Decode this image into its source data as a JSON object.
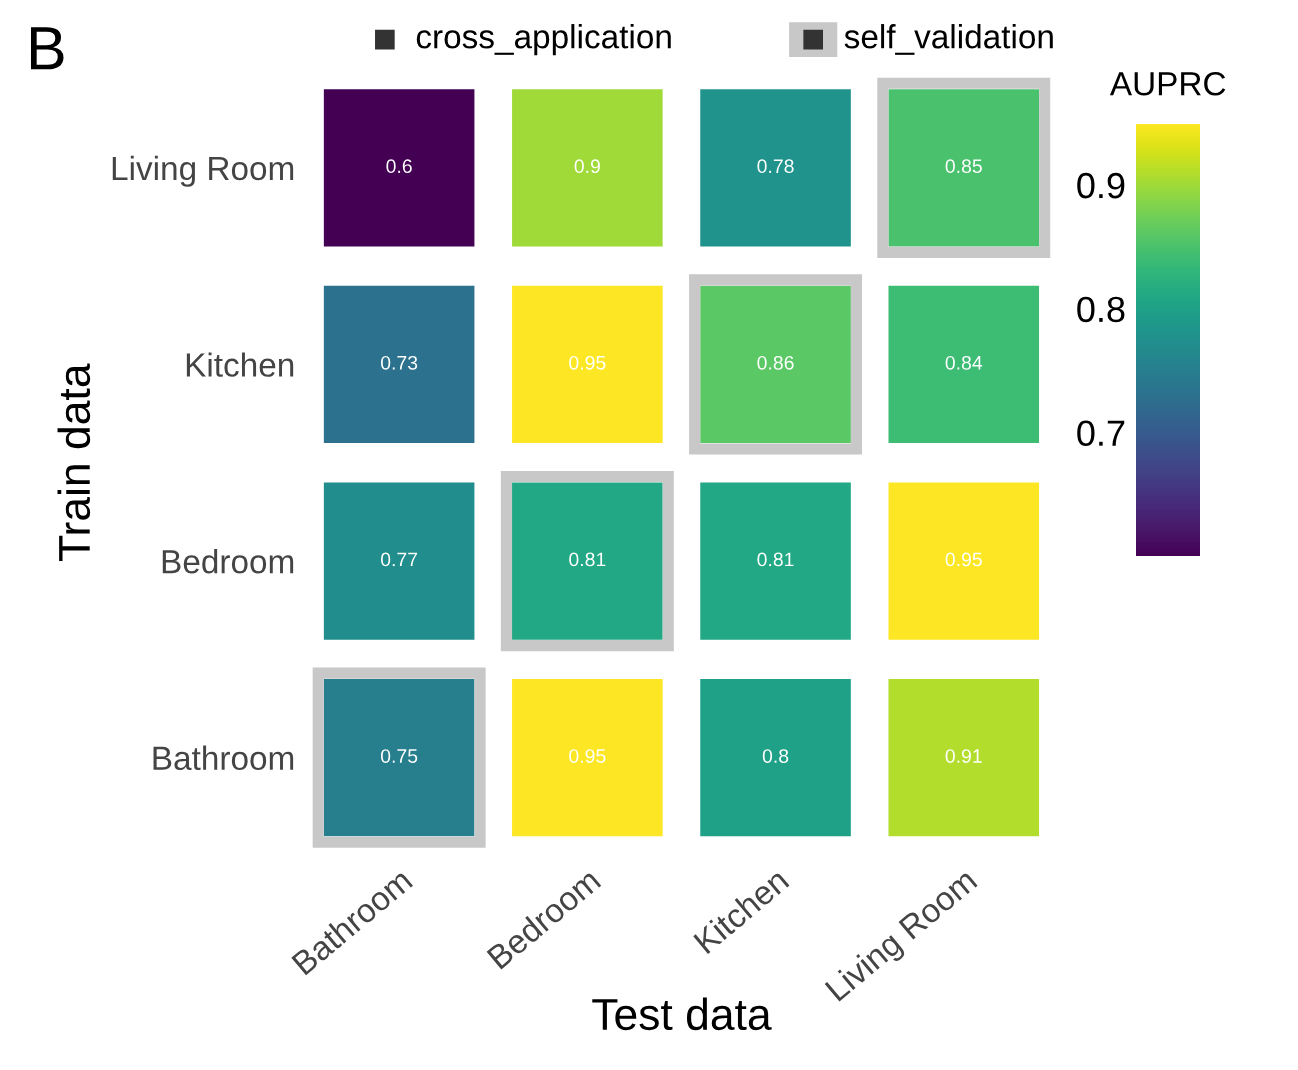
{
  "chart_data": {
    "type": "heatmap",
    "title": "B",
    "xlabel": "Test data",
    "ylabel": "Train data",
    "clabel": "AUPRC",
    "categories": [
      "Bathroom",
      "Bedroom",
      "Kitchen",
      "Living Room"
    ],
    "y_categories": [
      "Living Room",
      "Kitchen",
      "Bedroom",
      "Bathroom"
    ],
    "cells": [
      [
        0.6,
        0.9,
        0.78,
        0.85
      ],
      [
        0.73,
        0.95,
        0.86,
        0.84
      ],
      [
        0.77,
        0.81,
        0.81,
        0.95
      ],
      [
        0.75,
        0.95,
        0.8,
        0.91
      ]
    ],
    "data_labels": true,
    "clim": [
      0.6,
      0.95
    ],
    "cticks": [
      0.7,
      0.8,
      0.9
    ],
    "annotations": [
      "cross_application",
      "self_validation"
    ]
  }
}
